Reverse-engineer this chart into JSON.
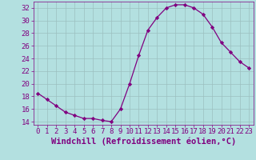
{
  "x": [
    0,
    1,
    2,
    3,
    4,
    5,
    6,
    7,
    8,
    9,
    10,
    11,
    12,
    13,
    14,
    15,
    16,
    17,
    18,
    19,
    20,
    21,
    22,
    23
  ],
  "y": [
    18.5,
    17.5,
    16.5,
    15.5,
    15.0,
    14.5,
    14.5,
    14.2,
    14.0,
    16.0,
    20.0,
    24.5,
    28.5,
    30.5,
    32.0,
    32.5,
    32.5,
    32.0,
    31.0,
    29.0,
    26.5,
    25.0,
    23.5,
    22.5
  ],
  "line_color": "#800080",
  "marker": "D",
  "marker_size": 2.2,
  "bg_color": "#b3e0e0",
  "grid_color": "#9bbfbf",
  "xlabel": "Windchill (Refroidissement éolien,°C)",
  "ylabel": "",
  "ylim": [
    13.5,
    33.0
  ],
  "xlim": [
    -0.5,
    23.5
  ],
  "yticks": [
    14,
    16,
    18,
    20,
    22,
    24,
    26,
    28,
    30,
    32
  ],
  "xticks": [
    0,
    1,
    2,
    3,
    4,
    5,
    6,
    7,
    8,
    9,
    10,
    11,
    12,
    13,
    14,
    15,
    16,
    17,
    18,
    19,
    20,
    21,
    22,
    23
  ],
  "label_color": "#800080",
  "tick_color": "#800080",
  "axis_fontsize": 6.5,
  "xlabel_fontsize": 7.5
}
